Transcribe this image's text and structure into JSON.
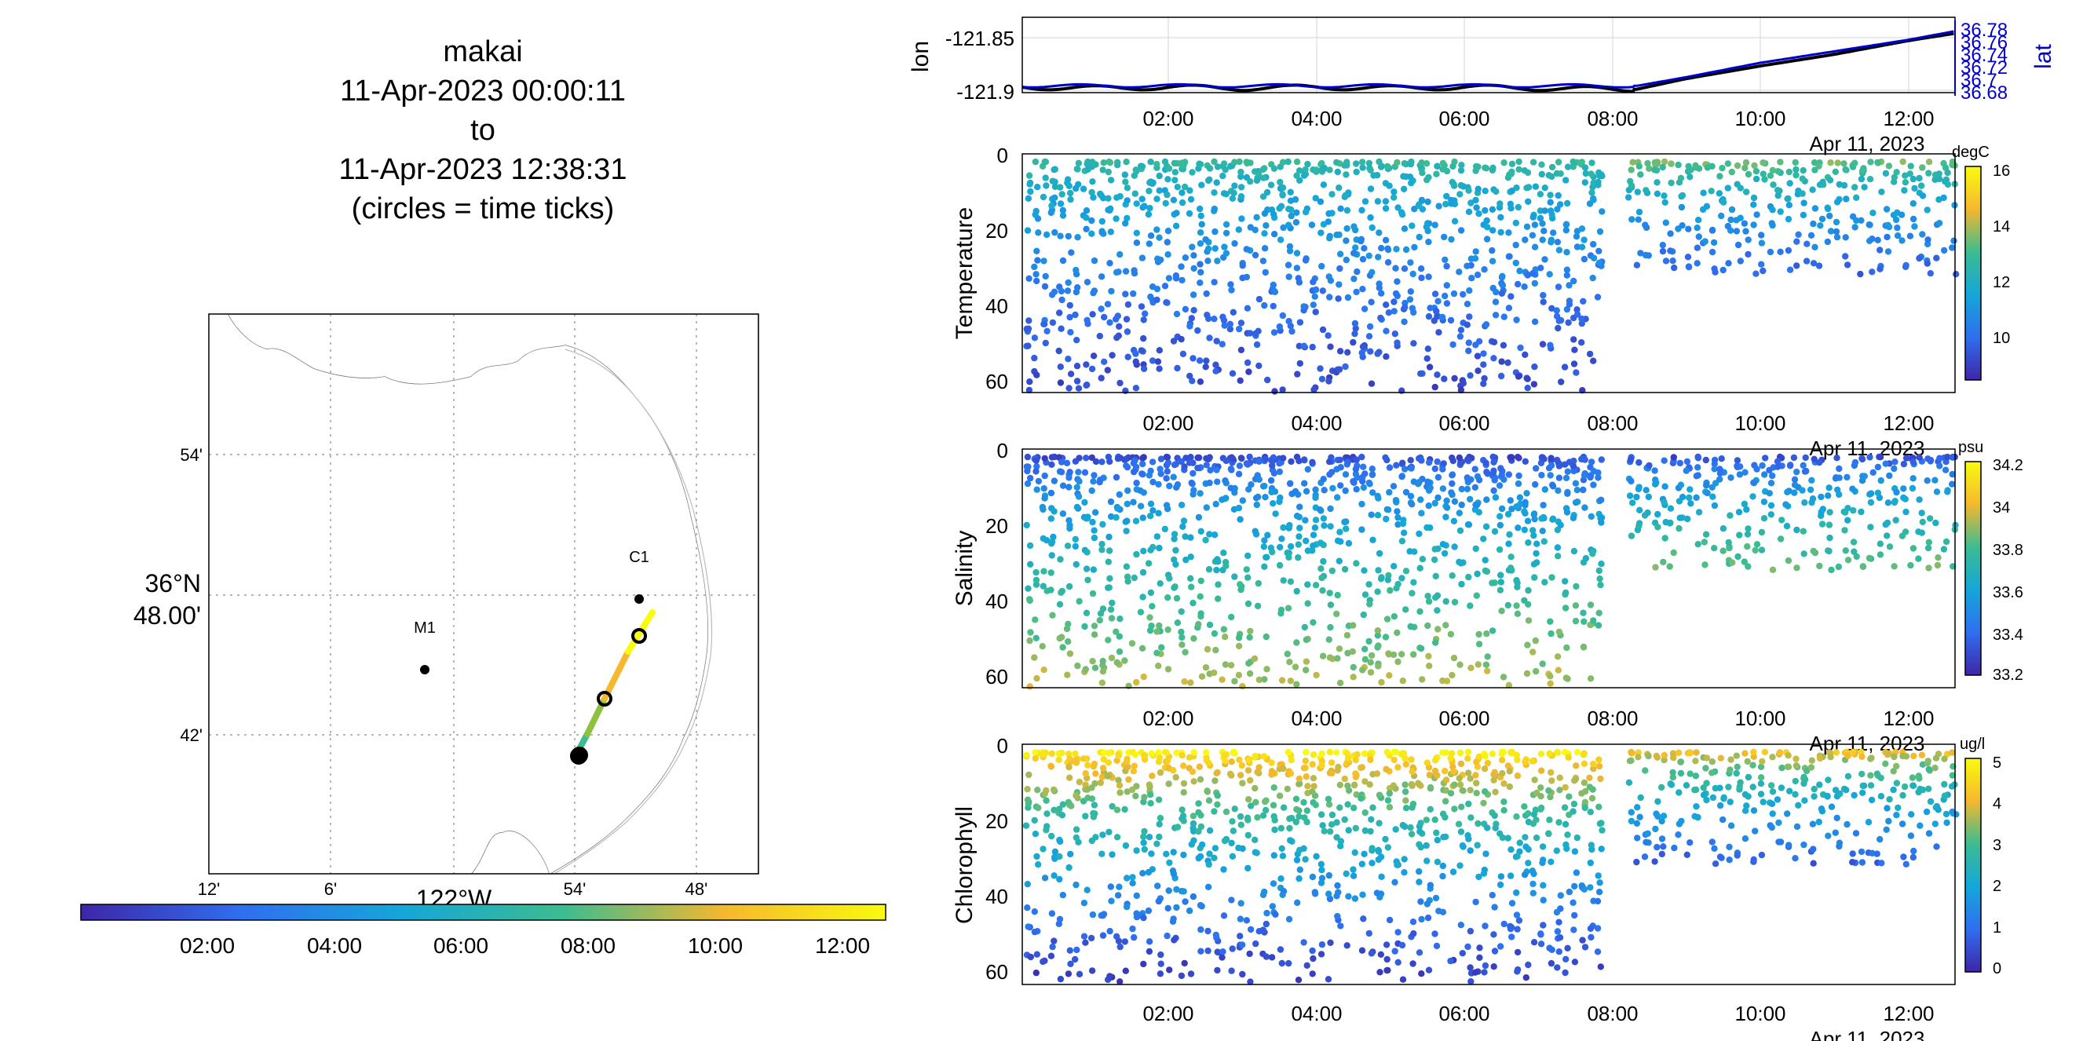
{
  "title": {
    "lines": [
      "makai",
      "11-Apr-2023 00:00:11",
      "to",
      "11-Apr-2023 12:38:31",
      "(circles = time ticks)"
    ]
  },
  "map": {
    "lat_tick_labels": [
      "54'",
      "36°N",
      "48.00'",
      "42'"
    ],
    "lon_tick_labels": [
      "12'",
      "6'",
      "122°W",
      "54'",
      "48'"
    ],
    "stations": [
      {
        "label": "C1"
      },
      {
        "label": "M1"
      }
    ],
    "colorbar_ticks": [
      "02:00",
      "04:00",
      "06:00",
      "08:00",
      "10:00",
      "12:00"
    ],
    "land_color": "#e5e5e5",
    "track_colors": [
      "#3e26a8",
      "#2a9bd8",
      "#25b8a0",
      "#8dc23f",
      "#f5b82e",
      "#f9fb0e"
    ]
  },
  "time_axis": {
    "tick_labels": [
      "02:00",
      "04:00",
      "06:00",
      "08:00",
      "10:00",
      "12:00"
    ],
    "date_label": "Apr 11, 2023"
  },
  "chart_data": [
    {
      "type": "line",
      "panel": "position",
      "xlabel": "",
      "ylabel": "lon",
      "ylabel_right": "lat",
      "yticks_left": [
        "-121.85",
        "-121.9"
      ],
      "yticks_right": [
        "36.78",
        "36.76",
        "36.74",
        "36.72",
        "36.7",
        "36.68"
      ],
      "series": [
        {
          "name": "lon",
          "color": "#000000",
          "x": [
            "00:00",
            "01:00",
            "02:00",
            "03:00",
            "04:00",
            "05:00",
            "06:00",
            "07:00",
            "08:00",
            "08:20",
            "09:00",
            "10:00",
            "11:00",
            "12:00",
            "12:38"
          ],
          "values": [
            -121.897,
            -121.898,
            -121.897,
            -121.898,
            -121.897,
            -121.898,
            -121.897,
            -121.898,
            -121.899,
            -121.899,
            -121.889,
            -121.877,
            -121.866,
            -121.853,
            -121.846
          ]
        },
        {
          "name": "lat",
          "color": "#0000cc",
          "x": [
            "00:00",
            "02:00",
            "04:00",
            "06:00",
            "08:00",
            "08:20",
            "09:00",
            "10:00",
            "11:00",
            "12:00",
            "12:38"
          ],
          "values": [
            36.685,
            36.685,
            36.685,
            36.685,
            36.685,
            36.685,
            36.7,
            36.725,
            36.745,
            36.765,
            36.78
          ]
        }
      ]
    },
    {
      "type": "scatter",
      "panel": "Temperature",
      "ylabel": "Temperature",
      "yticks": [
        "0",
        "20",
        "40",
        "60"
      ],
      "ylim": [
        0,
        60
      ],
      "colorbar": {
        "unit": "degC",
        "ticks": [
          "16",
          "14",
          "12",
          "10"
        ],
        "range": [
          8.5,
          16
        ]
      },
      "segments": [
        {
          "x_start": "00:05",
          "x_end": "07:50",
          "depth_range": [
            0,
            61
          ],
          "value_surface": 12.8,
          "value_deep": 9.2
        },
        {
          "x_start": "08:15",
          "x_end": "12:38",
          "depth_range": [
            0,
            30
          ],
          "value_surface": 13.6,
          "value_deep": 9.8
        }
      ]
    },
    {
      "type": "scatter",
      "panel": "Salinity",
      "ylabel": "Salinity",
      "yticks": [
        "0",
        "20",
        "40",
        "60"
      ],
      "ylim": [
        0,
        60
      ],
      "colorbar": {
        "unit": "psu",
        "ticks": [
          "34.2",
          "34",
          "33.8",
          "33.6",
          "33.4",
          "33.2"
        ],
        "range": [
          33.15,
          34.25
        ]
      },
      "segments": [
        {
          "x_start": "00:05",
          "x_end": "07:50",
          "depth_range": [
            0,
            61
          ],
          "value_surface": 33.25,
          "value_deep": 33.95
        },
        {
          "x_start": "08:15",
          "x_end": "12:38",
          "depth_range": [
            0,
            30
          ],
          "value_surface": 33.25,
          "value_deep": 33.85
        }
      ]
    },
    {
      "type": "scatter",
      "panel": "Chlorophyll",
      "ylabel": "Chlorophyll",
      "yticks": [
        "0",
        "20",
        "40",
        "60"
      ],
      "ylim": [
        0,
        60
      ],
      "colorbar": {
        "unit": "ug/l",
        "ticks": [
          "5",
          "4",
          "3",
          "2",
          "1",
          "0"
        ],
        "range": [
          0,
          5
        ]
      },
      "segments": [
        {
          "x_start": "00:05",
          "x_end": "07:50",
          "depth_range": [
            0,
            61
          ],
          "value_surface": 5,
          "value_deep": 0.3
        },
        {
          "x_start": "08:15",
          "x_end": "12:38",
          "depth_range": [
            0,
            30
          ],
          "value_surface": 4.2,
          "value_deep": 0.8
        }
      ]
    }
  ]
}
